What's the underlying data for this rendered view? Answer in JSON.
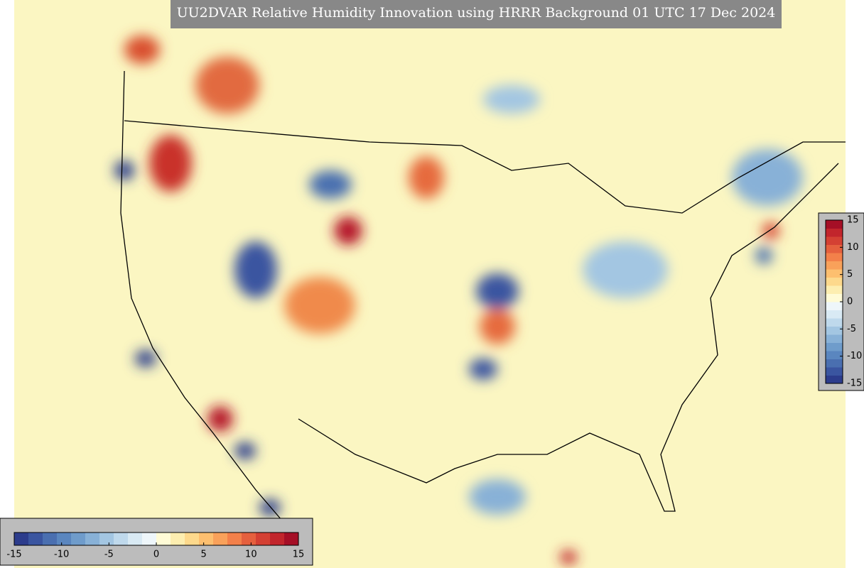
{
  "title": "UU2DVAR Relative Humidity Innovation using HRRR Background 01 UTC 17 Dec 2024",
  "colormap": [
    "#2c3c8c",
    "#3a55a0",
    "#4a6fb0",
    "#5a86bf",
    "#6f9ccb",
    "#88b1d7",
    "#a3c6e2",
    "#bfd9ec",
    "#d9eaf4",
    "#eef6fa",
    "#fffbd6",
    "#fdeeb0",
    "#fdd98c",
    "#fdbf6f",
    "#f9a15a",
    "#f3804a",
    "#e5603e",
    "#d44033",
    "#c2252c",
    "#a50f26"
  ],
  "colorbars": [
    {
      "orientation": "horizontal",
      "lim": [
        -15,
        15
      ],
      "ticks": [
        -15,
        -10,
        -5,
        0,
        5,
        10,
        15
      ]
    },
    {
      "orientation": "vertical",
      "lim": [
        -15,
        15
      ],
      "ticks": [
        15,
        10,
        5,
        0,
        -5,
        -10,
        -15
      ]
    }
  ]
}
